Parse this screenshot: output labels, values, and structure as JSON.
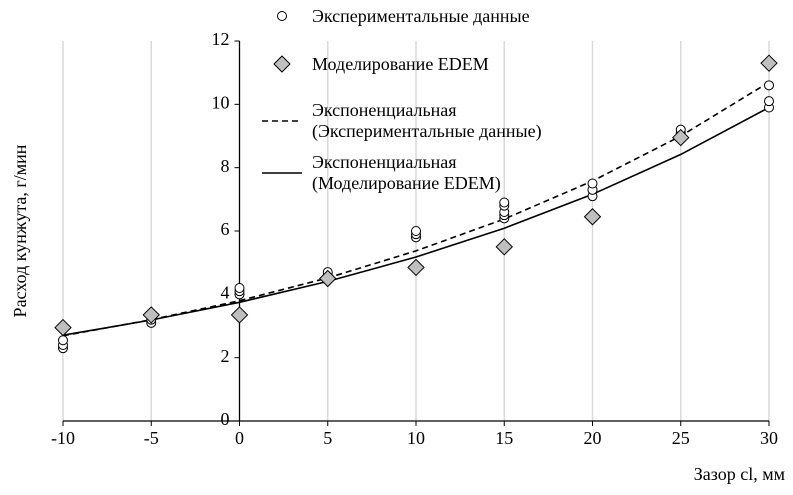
{
  "chart_data": {
    "type": "scatter",
    "y_label": "Расход кунжута,  г/мин",
    "x_label": "Зазор cl, мм",
    "xlim": [
      -10,
      30
    ],
    "xticks": [
      -10,
      -5,
      0,
      5,
      10,
      15,
      20,
      25,
      30
    ],
    "ylim": [
      0,
      12
    ],
    "yticks": [
      0,
      2,
      4,
      6,
      8,
      10,
      12
    ],
    "grid": "x",
    "series": [
      {
        "name": "Экспериментальные данные",
        "kind": "markers",
        "marker": "circle",
        "color": "#000000",
        "x": [
          -10,
          -10,
          -10,
          -5,
          -5,
          0,
          0,
          0,
          5,
          5,
          10,
          10,
          10,
          15,
          15,
          15,
          15,
          15,
          20,
          20,
          20,
          25,
          25,
          30,
          30,
          30
        ],
        "values": [
          2.3,
          2.4,
          2.55,
          3.1,
          3.2,
          4.0,
          4.1,
          4.2,
          4.6,
          4.7,
          5.8,
          5.9,
          6.0,
          6.4,
          6.5,
          6.6,
          6.8,
          6.9,
          7.1,
          7.3,
          7.5,
          9.1,
          9.2,
          9.9,
          10.1,
          10.6
        ]
      },
      {
        "name": "Моделирование EDEM",
        "kind": "markers",
        "marker": "diamond",
        "color": "#bfbfbf",
        "x": [
          -10,
          -5,
          0,
          5,
          10,
          15,
          20,
          25,
          30
        ],
        "values": [
          2.95,
          3.35,
          3.35,
          4.5,
          4.85,
          5.5,
          6.45,
          8.95,
          11.3
        ]
      },
      {
        "name": "Экспоненциальная\n(Экспериментальные данные)",
        "kind": "line",
        "dash": true,
        "color": "#000000",
        "x": [
          -10,
          -5,
          0,
          5,
          10,
          15,
          20,
          25,
          30
        ],
        "values": [
          2.69,
          3.2,
          3.8,
          4.52,
          5.37,
          6.38,
          7.58,
          9.0,
          10.7
        ]
      },
      {
        "name": "Экспоненциальная\n(Моделирование EDEM)",
        "kind": "line",
        "dash": false,
        "color": "#000000",
        "x": [
          -10,
          -5,
          0,
          5,
          10,
          15,
          20,
          25,
          30
        ],
        "values": [
          2.71,
          3.19,
          3.75,
          4.41,
          5.18,
          6.09,
          7.16,
          8.42,
          9.9
        ]
      }
    ]
  }
}
